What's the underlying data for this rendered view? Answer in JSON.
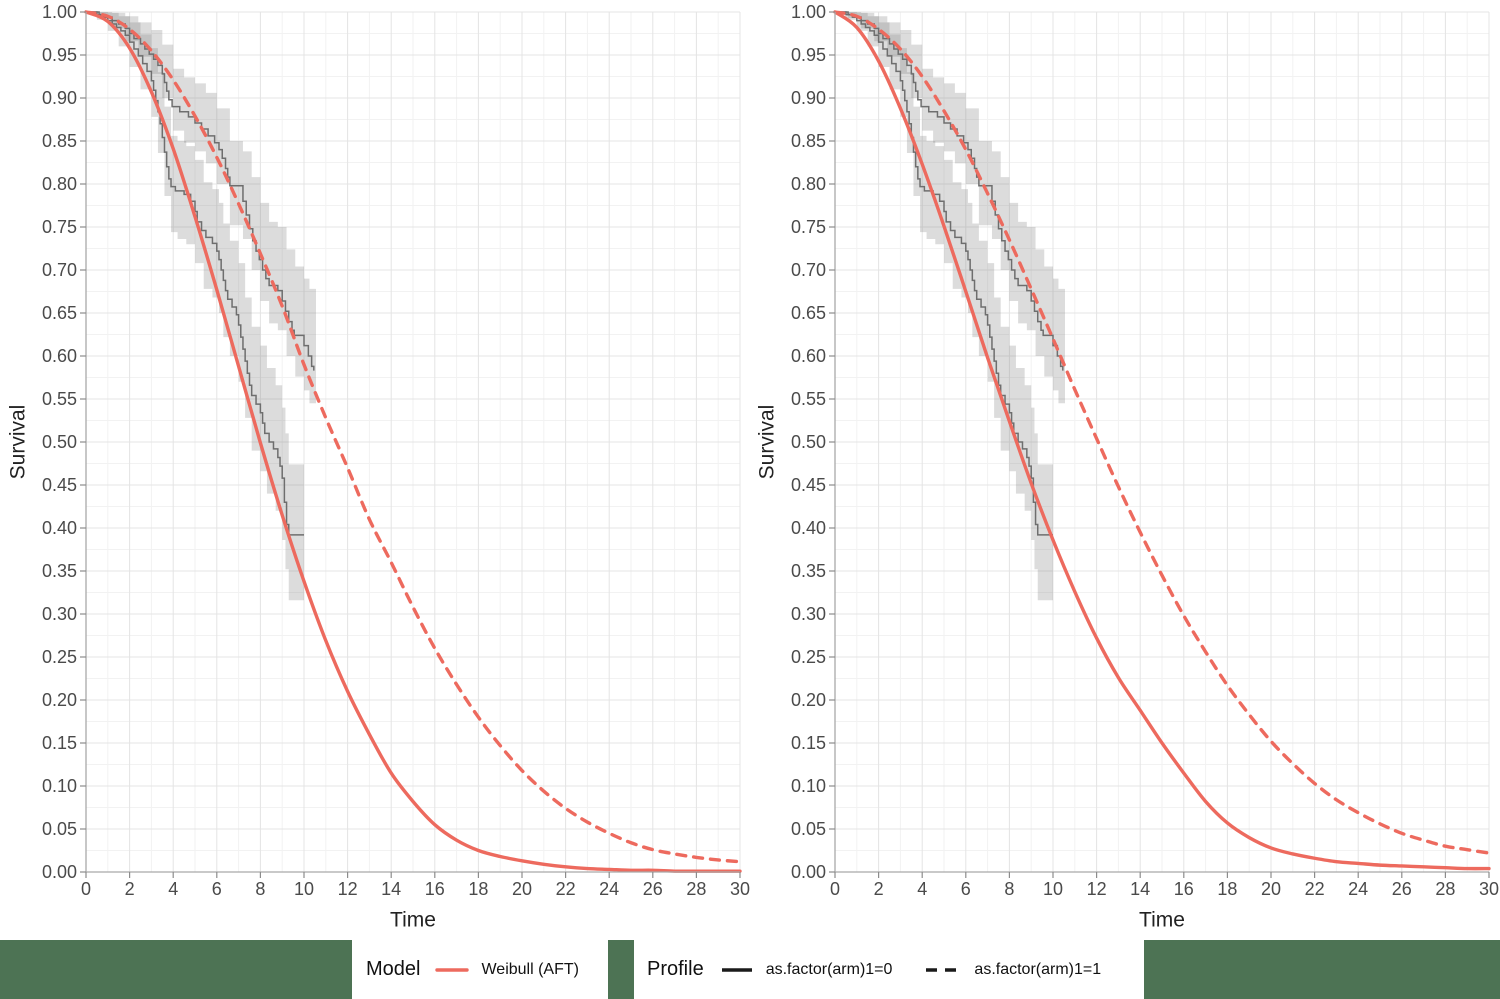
{
  "chart_data": {
    "type": "line",
    "title": "",
    "xlabel": "Time",
    "ylabel": "Survival",
    "xlim": [
      0,
      30
    ],
    "ylim": [
      0.0,
      1.0
    ],
    "x_ticks": [
      0,
      2,
      4,
      6,
      8,
      10,
      12,
      14,
      16,
      18,
      20,
      22,
      24,
      26,
      28,
      30
    ],
    "y_ticks": [
      0.0,
      0.05,
      0.1,
      0.15,
      0.2,
      0.25,
      0.3,
      0.35,
      0.4,
      0.45,
      0.5,
      0.55,
      0.6,
      0.65,
      0.7,
      0.75,
      0.8,
      0.85,
      0.9,
      0.95,
      1.0
    ],
    "grid": "major and minor gridlines, white panel background",
    "legend_position": "bottom",
    "colors": {
      "model_curve": "#ed6a5e",
      "km_curve": "#6e6e6e",
      "km_band": "rgba(125,125,125,0.27)",
      "grid_major": "#e4e4e4",
      "grid_minor": "#f2f2f2",
      "axis_line": "#a9a9a9",
      "tick_mark": "#8c8c8c",
      "tick_label": "#4a4a4a",
      "axis_title": "#222222",
      "footer_green": "#4d7354",
      "legend_key_black": "#1a1a1a"
    },
    "km": [
      {
        "profile": "as.factor(arm)1=0",
        "steps": [
          [
            0,
            1
          ],
          [
            0.5,
            0.997
          ],
          [
            0.8,
            0.994
          ],
          [
            1.0,
            0.99
          ],
          [
            1.2,
            0.986
          ],
          [
            1.4,
            0.982
          ],
          [
            1.6,
            0.978
          ],
          [
            1.8,
            0.973
          ],
          [
            2.0,
            0.965
          ],
          [
            2.2,
            0.957
          ],
          [
            2.4,
            0.949
          ],
          [
            2.6,
            0.94
          ],
          [
            2.8,
            0.931
          ],
          [
            3.0,
            0.92
          ],
          [
            3.1,
            0.909
          ],
          [
            3.2,
            0.897
          ],
          [
            3.3,
            0.884
          ],
          [
            3.4,
            0.87
          ],
          [
            3.5,
            0.854
          ],
          [
            3.6,
            0.837
          ],
          [
            3.7,
            0.82
          ],
          [
            3.8,
            0.806
          ],
          [
            3.9,
            0.797
          ],
          [
            4.1,
            0.792
          ],
          [
            4.5,
            0.788
          ],
          [
            4.8,
            0.78
          ],
          [
            5.0,
            0.768
          ],
          [
            5.1,
            0.756
          ],
          [
            5.3,
            0.746
          ],
          [
            5.5,
            0.738
          ],
          [
            5.8,
            0.731
          ],
          [
            6.0,
            0.722
          ],
          [
            6.1,
            0.712
          ],
          [
            6.2,
            0.7
          ],
          [
            6.3,
            0.688
          ],
          [
            6.4,
            0.676
          ],
          [
            6.5,
            0.666
          ],
          [
            6.7,
            0.657
          ],
          [
            6.9,
            0.648
          ],
          [
            7.0,
            0.636
          ],
          [
            7.1,
            0.622
          ],
          [
            7.2,
            0.608
          ],
          [
            7.3,
            0.594
          ],
          [
            7.4,
            0.58
          ],
          [
            7.5,
            0.566
          ],
          [
            7.6,
            0.554
          ],
          [
            7.8,
            0.544
          ],
          [
            8.0,
            0.534
          ],
          [
            8.1,
            0.522
          ],
          [
            8.2,
            0.51
          ],
          [
            8.4,
            0.5
          ],
          [
            8.6,
            0.492
          ],
          [
            8.8,
            0.482
          ],
          [
            8.9,
            0.472
          ],
          [
            9.0,
            0.458
          ],
          [
            9.1,
            0.43
          ],
          [
            9.2,
            0.404
          ],
          [
            9.3,
            0.392
          ],
          [
            10.0,
            0.392
          ]
        ],
        "band": [
          [
            0,
            1,
            1
          ],
          [
            0.5,
            0.991,
            1
          ],
          [
            1,
            0.978,
            0.999
          ],
          [
            1.5,
            0.96,
            0.995
          ],
          [
            2,
            0.936,
            0.988
          ],
          [
            2.5,
            0.91,
            0.974
          ],
          [
            3,
            0.878,
            0.958
          ],
          [
            3.3,
            0.836,
            0.93
          ],
          [
            3.6,
            0.786,
            0.89
          ],
          [
            3.9,
            0.744,
            0.856
          ],
          [
            4.2,
            0.736,
            0.85
          ],
          [
            4.6,
            0.73,
            0.844
          ],
          [
            5,
            0.708,
            0.828
          ],
          [
            5.4,
            0.678,
            0.802
          ],
          [
            5.8,
            0.668,
            0.794
          ],
          [
            6.1,
            0.65,
            0.778
          ],
          [
            6.3,
            0.622,
            0.754
          ],
          [
            6.6,
            0.6,
            0.734
          ],
          [
            7,
            0.57,
            0.708
          ],
          [
            7.3,
            0.528,
            0.668
          ],
          [
            7.6,
            0.49,
            0.634
          ],
          [
            8,
            0.466,
            0.612
          ],
          [
            8.3,
            0.44,
            0.586
          ],
          [
            8.7,
            0.42,
            0.566
          ],
          [
            9,
            0.386,
            0.54
          ],
          [
            9.15,
            0.352,
            0.51
          ],
          [
            9.3,
            0.316,
            0.474
          ],
          [
            10,
            0.316,
            0.474
          ]
        ]
      },
      {
        "profile": "as.factor(arm)1=1",
        "steps": [
          [
            0,
            1
          ],
          [
            0.6,
            0.997
          ],
          [
            0.9,
            0.994
          ],
          [
            1.2,
            0.99
          ],
          [
            1.5,
            0.986
          ],
          [
            1.8,
            0.981
          ],
          [
            2.0,
            0.975
          ],
          [
            2.2,
            0.969
          ],
          [
            2.5,
            0.963
          ],
          [
            2.7,
            0.957
          ],
          [
            2.9,
            0.951
          ],
          [
            3.1,
            0.945
          ],
          [
            3.3,
            0.938
          ],
          [
            3.5,
            0.928
          ],
          [
            3.6,
            0.918
          ],
          [
            3.7,
            0.908
          ],
          [
            3.8,
            0.898
          ],
          [
            3.95,
            0.89
          ],
          [
            4.3,
            0.884
          ],
          [
            4.7,
            0.878
          ],
          [
            5.0,
            0.871
          ],
          [
            5.3,
            0.864
          ],
          [
            5.6,
            0.856
          ],
          [
            5.9,
            0.848
          ],
          [
            6.1,
            0.84
          ],
          [
            6.25,
            0.83
          ],
          [
            6.4,
            0.818
          ],
          [
            6.5,
            0.808
          ],
          [
            6.6,
            0.798
          ],
          [
            7.2,
            0.78
          ],
          [
            7.35,
            0.764
          ],
          [
            7.5,
            0.748
          ],
          [
            7.65,
            0.734
          ],
          [
            7.8,
            0.722
          ],
          [
            7.95,
            0.712
          ],
          [
            8.1,
            0.7
          ],
          [
            8.25,
            0.69
          ],
          [
            8.4,
            0.682
          ],
          [
            8.8,
            0.676
          ],
          [
            9.0,
            0.664
          ],
          [
            9.15,
            0.652
          ],
          [
            9.3,
            0.64
          ],
          [
            9.45,
            0.63
          ],
          [
            9.55,
            0.624
          ],
          [
            10.0,
            0.612
          ],
          [
            10.2,
            0.6
          ],
          [
            10.35,
            0.588
          ],
          [
            10.45,
            0.583
          ]
        ],
        "band": [
          [
            0,
            1,
            1
          ],
          [
            0.6,
            0.993,
            1
          ],
          [
            1.2,
            0.981,
            0.999
          ],
          [
            1.8,
            0.966,
            0.995
          ],
          [
            2.4,
            0.948,
            0.988
          ],
          [
            3,
            0.928,
            0.979
          ],
          [
            3.5,
            0.9,
            0.962
          ],
          [
            4,
            0.862,
            0.934
          ],
          [
            4.5,
            0.848,
            0.924
          ],
          [
            5,
            0.838,
            0.917
          ],
          [
            5.5,
            0.824,
            0.906
          ],
          [
            6,
            0.8,
            0.888
          ],
          [
            6.6,
            0.752,
            0.85
          ],
          [
            7.2,
            0.736,
            0.838
          ],
          [
            7.6,
            0.7,
            0.808
          ],
          [
            8,
            0.664,
            0.778
          ],
          [
            8.4,
            0.638,
            0.756
          ],
          [
            8.8,
            0.63,
            0.75
          ],
          [
            9.2,
            0.6,
            0.724
          ],
          [
            9.6,
            0.576,
            0.704
          ],
          [
            10,
            0.56,
            0.69
          ],
          [
            10.25,
            0.545,
            0.678
          ],
          [
            10.55,
            0.53,
            0.668
          ]
        ]
      }
    ],
    "model_times": [
      0,
      1,
      2,
      3,
      4,
      5,
      6,
      7,
      8,
      9,
      10,
      11,
      12,
      13,
      14,
      15,
      16,
      17,
      18,
      19,
      20,
      21,
      22,
      23,
      24,
      25,
      26,
      27,
      28,
      29,
      30
    ],
    "panels": [
      {
        "id": "left",
        "models": [
          {
            "label": "Weibull (AFT)",
            "profile": "as.factor(arm)1=0",
            "line": "solid",
            "survival": [
              1.0,
              0.989,
              0.958,
              0.907,
              0.841,
              0.762,
              0.677,
              0.588,
              0.499,
              0.415,
              0.338,
              0.269,
              0.21,
              0.16,
              0.115,
              0.082,
              0.055,
              0.037,
              0.025,
              0.018,
              0.013,
              0.009,
              0.006,
              0.004,
              0.003,
              0.002,
              0.002,
              0.001,
              0.001,
              0.001,
              0.001
            ]
          },
          {
            "label": "Weibull (AFT)",
            "profile": "as.factor(arm)1=1",
            "line": "dashed",
            "survival": [
              1.0,
              0.995,
              0.98,
              0.955,
              0.921,
              0.879,
              0.831,
              0.777,
              0.719,
              0.658,
              0.59,
              0.528,
              0.47,
              0.41,
              0.36,
              0.308,
              0.26,
              0.218,
              0.18,
              0.147,
              0.118,
              0.094,
              0.074,
              0.058,
              0.045,
              0.034,
              0.026,
              0.021,
              0.017,
              0.014,
              0.012
            ]
          }
        ]
      },
      {
        "id": "right",
        "models": [
          {
            "label": "Weibull (AFT)",
            "profile": "as.factor(arm)1=0",
            "line": "solid",
            "survival": [
              1.0,
              0.982,
              0.943,
              0.888,
              0.823,
              0.751,
              0.675,
              0.598,
              0.524,
              0.452,
              0.386,
              0.326,
              0.272,
              0.226,
              0.188,
              0.15,
              0.115,
              0.082,
              0.057,
              0.04,
              0.028,
              0.021,
              0.016,
              0.012,
              0.01,
              0.008,
              0.007,
              0.006,
              0.005,
              0.004,
              0.004
            ]
          },
          {
            "label": "Weibull (AFT)",
            "profile": "as.factor(arm)1=1",
            "line": "dashed",
            "survival": [
              1.0,
              0.995,
              0.98,
              0.957,
              0.925,
              0.885,
              0.84,
              0.789,
              0.735,
              0.678,
              0.62,
              0.561,
              0.504,
              0.448,
              0.395,
              0.345,
              0.298,
              0.256,
              0.217,
              0.183,
              0.152,
              0.126,
              0.103,
              0.084,
              0.069,
              0.056,
              0.045,
              0.037,
              0.03,
              0.026,
              0.022
            ]
          }
        ]
      }
    ],
    "legend": {
      "model_title": "Model",
      "model_items": [
        {
          "label": "Weibull (AFT)",
          "line": "solid",
          "color": "#ed6a5e"
        }
      ],
      "profile_title": "Profile",
      "profile_items": [
        {
          "label": "as.factor(arm)1=0",
          "line": "solid"
        },
        {
          "label": "as.factor(arm)1=1",
          "line": "dashed"
        }
      ]
    }
  }
}
